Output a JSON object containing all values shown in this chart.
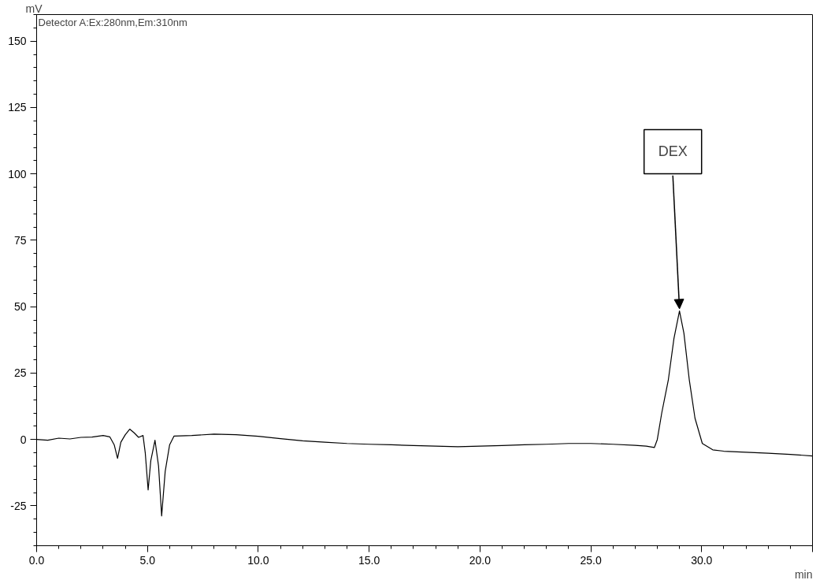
{
  "chart_data": {
    "type": "line",
    "xlabel": "min",
    "ylabel": "mV",
    "annotations": [
      "Detector A:Ex:280nm,Em:310nm",
      {
        "text": "DEX",
        "x": 29.0,
        "y": 48.4
      }
    ],
    "x": [
      0,
      0.5,
      1,
      1.5,
      2,
      2.5,
      3,
      3.3,
      3.5,
      3.65,
      3.8,
      4.0,
      4.2,
      4.4,
      4.6,
      4.8,
      4.9,
      5.03,
      5.15,
      5.34,
      5.5,
      5.64,
      5.8,
      6.0,
      6.2,
      7,
      8,
      9,
      10,
      11,
      12,
      13,
      14,
      15,
      16,
      17,
      18,
      19,
      20,
      21,
      22,
      23,
      24,
      25,
      26,
      27,
      27.5,
      27.87,
      28.0,
      28.2,
      28.5,
      28.75,
      29.0,
      29.2,
      29.44,
      29.7,
      30.03,
      30.5,
      31,
      32,
      33,
      34,
      35
    ],
    "series": [
      {
        "color": "#000000",
        "values": [
          0,
          -0.3,
          0.5,
          0.2,
          0.8,
          0.9,
          1.5,
          1.0,
          -2,
          -7.1,
          -1,
          1.8,
          3.9,
          2.5,
          0.8,
          1.5,
          -5,
          -19,
          -8,
          -0.3,
          -10,
          -28.8,
          -12,
          -2,
          1.3,
          1.5,
          2.0,
          1.8,
          1.2,
          0.3,
          -0.5,
          -1.0,
          -1.5,
          -1.8,
          -2.0,
          -2.3,
          -2.5,
          -2.7,
          -2.5,
          -2.3,
          -2.0,
          -1.8,
          -1.5,
          -1.5,
          -1.8,
          -2.2,
          -2.5,
          -3,
          0,
          10,
          22.6,
          38,
          48.4,
          40,
          22.6,
          8,
          -1.5,
          -3.9,
          -4.4,
          -4.8,
          -5.2,
          -5.6,
          -6.2
        ]
      }
    ],
    "xlim": [
      0,
      35
    ],
    "ylim": [
      -40,
      160
    ],
    "xticks": [
      {
        "value": 0,
        "label": "0.0"
      },
      {
        "value": 5,
        "label": "5.0"
      },
      {
        "value": 10,
        "label": "10.0"
      },
      {
        "value": 15,
        "label": "15.0"
      },
      {
        "value": 20,
        "label": "20.0"
      },
      {
        "value": 25,
        "label": "25.0"
      },
      {
        "value": 30,
        "label": "30.0"
      },
      {
        "value": 35,
        "label": null
      }
    ],
    "yticks": [
      -25,
      0,
      25,
      50,
      75,
      100,
      125,
      150
    ],
    "grid": false,
    "marker": "none",
    "line_style": "solid"
  }
}
